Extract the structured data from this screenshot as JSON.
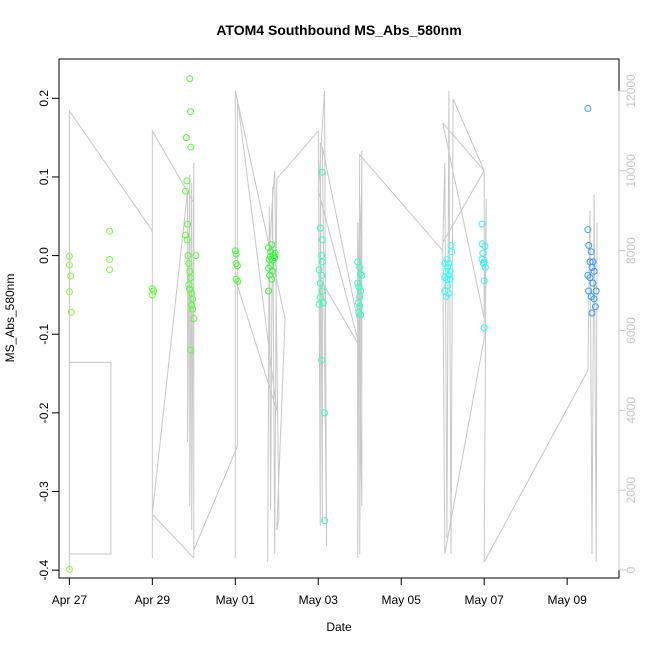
{
  "chart_data": {
    "type": "scatter",
    "title": "ATOM4 Southbound MS_Abs_580nm",
    "xlabel": "Date",
    "ylabel": "MS_Abs_580nm",
    "xlim": [
      -0.25,
      13.25
    ],
    "ylim": [
      -0.41,
      0.25
    ],
    "y2lim": [
      -200,
      12800
    ],
    "grid": false,
    "x_ticks": [
      {
        "value": 0,
        "label": "Apr 27"
      },
      {
        "value": 2,
        "label": "Apr 29"
      },
      {
        "value": 4,
        "label": "May 01"
      },
      {
        "value": 6,
        "label": "May 03"
      },
      {
        "value": 8,
        "label": "May 05"
      },
      {
        "value": 10,
        "label": "May 07"
      },
      {
        "value": 12,
        "label": "May 09"
      }
    ],
    "y_ticks": [
      {
        "value": -0.4,
        "label": "-0.4"
      },
      {
        "value": -0.3,
        "label": "-0.3"
      },
      {
        "value": -0.2,
        "label": "-0.2"
      },
      {
        "value": -0.1,
        "label": "-0.1"
      },
      {
        "value": 0.0,
        "label": "0.0"
      },
      {
        "value": 0.1,
        "label": "0.1"
      },
      {
        "value": 0.2,
        "label": "0.2"
      }
    ],
    "y2_ticks": [
      {
        "value": 0,
        "label": "0"
      },
      {
        "value": 2000,
        "label": "2000"
      },
      {
        "value": 4000,
        "label": "4000"
      },
      {
        "value": 6000,
        "label": "6000"
      },
      {
        "value": 8000,
        "label": "8000"
      },
      {
        "value": 10000,
        "label": "10000"
      },
      {
        "value": 12000,
        "label": "12000"
      }
    ],
    "series": [
      {
        "name": "MS_Abs_580nm points",
        "kind": "points",
        "points": [
          {
            "x": 0.0,
            "y": -0.001,
            "color": "#80ff33"
          },
          {
            "x": 0.0,
            "y": -0.012,
            "color": "#80ff33"
          },
          {
            "x": 0.03,
            "y": -0.026,
            "color": "#80ff33"
          },
          {
            "x": 0.0,
            "y": -0.046,
            "color": "#80ff33"
          },
          {
            "x": 0.05,
            "y": -0.072,
            "color": "#80ff33"
          },
          {
            "x": 0.0,
            "y": -0.399,
            "color": "#80ff33"
          },
          {
            "x": 0.97,
            "y": 0.031,
            "color": "#7aff33"
          },
          {
            "x": 0.97,
            "y": -0.005,
            "color": "#7aff33"
          },
          {
            "x": 0.97,
            "y": -0.018,
            "color": "#7aff33"
          },
          {
            "x": 2.0,
            "y": -0.042,
            "color": "#66ff33"
          },
          {
            "x": 2.03,
            "y": -0.045,
            "color": "#66ff33"
          },
          {
            "x": 2.0,
            "y": -0.05,
            "color": "#66ff33"
          },
          {
            "x": 2.82,
            "y": 0.15,
            "color": "#55ff33"
          },
          {
            "x": 2.83,
            "y": 0.095,
            "color": "#55ff33"
          },
          {
            "x": 2.8,
            "y": 0.082,
            "color": "#55ff33"
          },
          {
            "x": 2.85,
            "y": 0.04,
            "color": "#55ff33"
          },
          {
            "x": 2.8,
            "y": 0.026,
            "color": "#55ff33"
          },
          {
            "x": 2.84,
            "y": 0.02,
            "color": "#55ff33"
          },
          {
            "x": 2.86,
            "y": 0.0,
            "color": "#55ff33"
          },
          {
            "x": 2.88,
            "y": -0.01,
            "color": "#55ff33"
          },
          {
            "x": 2.9,
            "y": 0.225,
            "color": "#55ff33"
          },
          {
            "x": 2.92,
            "y": 0.183,
            "color": "#55ff33"
          },
          {
            "x": 2.93,
            "y": 0.138,
            "color": "#55ff33"
          },
          {
            "x": 2.9,
            "y": -0.02,
            "color": "#55ff33"
          },
          {
            "x": 2.92,
            "y": -0.028,
            "color": "#55ff33"
          },
          {
            "x": 2.88,
            "y": -0.037,
            "color": "#55ff33"
          },
          {
            "x": 2.9,
            "y": -0.043,
            "color": "#55ff33"
          },
          {
            "x": 2.95,
            "y": -0.048,
            "color": "#55ff33"
          },
          {
            "x": 2.97,
            "y": -0.055,
            "color": "#55ff33"
          },
          {
            "x": 2.95,
            "y": -0.063,
            "color": "#55ff33"
          },
          {
            "x": 2.97,
            "y": -0.068,
            "color": "#55ff33"
          },
          {
            "x": 3.0,
            "y": -0.08,
            "color": "#55ff33"
          },
          {
            "x": 2.92,
            "y": -0.12,
            "color": "#55ff33"
          },
          {
            "x": 3.05,
            "y": 0.0,
            "color": "#55ff33"
          },
          {
            "x": 4.0,
            "y": 0.006,
            "color": "#40ff33"
          },
          {
            "x": 4.02,
            "y": 0.002,
            "color": "#40ff33"
          },
          {
            "x": 4.02,
            "y": -0.01,
            "color": "#40ff33"
          },
          {
            "x": 4.05,
            "y": -0.013,
            "color": "#40ff33"
          },
          {
            "x": 4.02,
            "y": -0.03,
            "color": "#40ff33"
          },
          {
            "x": 4.06,
            "y": -0.033,
            "color": "#40ff33"
          },
          {
            "x": 4.8,
            "y": 0.01,
            "color": "#2eff33"
          },
          {
            "x": 4.85,
            "y": 0.005,
            "color": "#2eff33"
          },
          {
            "x": 4.88,
            "y": 0.014,
            "color": "#2eff33"
          },
          {
            "x": 4.85,
            "y": -0.001,
            "color": "#2eff33"
          },
          {
            "x": 4.82,
            "y": -0.005,
            "color": "#2eff33"
          },
          {
            "x": 4.9,
            "y": -0.006,
            "color": "#2eff33"
          },
          {
            "x": 4.85,
            "y": -0.013,
            "color": "#2eff33"
          },
          {
            "x": 4.8,
            "y": -0.016,
            "color": "#2eff33"
          },
          {
            "x": 4.9,
            "y": -0.02,
            "color": "#2eff33"
          },
          {
            "x": 4.83,
            "y": -0.025,
            "color": "#2eff33"
          },
          {
            "x": 4.88,
            "y": -0.03,
            "color": "#2eff33"
          },
          {
            "x": 4.8,
            "y": -0.045,
            "color": "#2eff33"
          },
          {
            "x": 4.93,
            "y": 0.0,
            "color": "#2eff33"
          },
          {
            "x": 4.95,
            "y": -0.003,
            "color": "#2eff33"
          },
          {
            "x": 4.96,
            "y": 0.003,
            "color": "#2eff33"
          },
          {
            "x": 6.1,
            "y": 0.106,
            "color": "#33ffb3"
          },
          {
            "x": 6.05,
            "y": 0.035,
            "color": "#33ffb3"
          },
          {
            "x": 6.1,
            "y": 0.02,
            "color": "#33ffb3"
          },
          {
            "x": 6.08,
            "y": 0.0,
            "color": "#33ffb3"
          },
          {
            "x": 6.1,
            "y": -0.008,
            "color": "#33ffb3"
          },
          {
            "x": 6.02,
            "y": -0.018,
            "color": "#33ffb3"
          },
          {
            "x": 6.08,
            "y": -0.025,
            "color": "#33ffb3"
          },
          {
            "x": 6.05,
            "y": -0.035,
            "color": "#33ffb3"
          },
          {
            "x": 6.1,
            "y": -0.045,
            "color": "#33ffb3"
          },
          {
            "x": 6.05,
            "y": -0.053,
            "color": "#33ffb3"
          },
          {
            "x": 6.02,
            "y": -0.062,
            "color": "#33ffb3"
          },
          {
            "x": 6.12,
            "y": -0.06,
            "color": "#33ffb3"
          },
          {
            "x": 6.08,
            "y": -0.133,
            "color": "#33ffb3"
          },
          {
            "x": 6.15,
            "y": -0.2,
            "color": "#33ffb3"
          },
          {
            "x": 6.15,
            "y": -0.337,
            "color": "#33ffb3"
          },
          {
            "x": 6.95,
            "y": -0.008,
            "color": "#33ffc0"
          },
          {
            "x": 7.0,
            "y": -0.015,
            "color": "#33ffc0"
          },
          {
            "x": 7.02,
            "y": -0.023,
            "color": "#33ffc0"
          },
          {
            "x": 6.95,
            "y": -0.035,
            "color": "#33ffc0"
          },
          {
            "x": 6.98,
            "y": -0.04,
            "color": "#33ffc0"
          },
          {
            "x": 7.02,
            "y": -0.045,
            "color": "#33ffc0"
          },
          {
            "x": 7.0,
            "y": -0.052,
            "color": "#33ffc0"
          },
          {
            "x": 6.97,
            "y": -0.06,
            "color": "#33ffc0"
          },
          {
            "x": 7.0,
            "y": -0.065,
            "color": "#33ffc0"
          },
          {
            "x": 6.98,
            "y": -0.072,
            "color": "#33ffc0"
          },
          {
            "x": 7.02,
            "y": -0.075,
            "color": "#33ffc0"
          },
          {
            "x": 7.05,
            "y": -0.025,
            "color": "#33ffc0"
          },
          {
            "x": 9.05,
            "y": -0.01,
            "color": "#33ffff"
          },
          {
            "x": 9.1,
            "y": -0.005,
            "color": "#33ffff"
          },
          {
            "x": 9.12,
            "y": -0.015,
            "color": "#33ffff"
          },
          {
            "x": 9.08,
            "y": -0.02,
            "color": "#33ffff"
          },
          {
            "x": 9.15,
            "y": -0.025,
            "color": "#33ffff"
          },
          {
            "x": 9.05,
            "y": -0.028,
            "color": "#33ffff"
          },
          {
            "x": 9.1,
            "y": -0.03,
            "color": "#33ffff"
          },
          {
            "x": 9.18,
            "y": -0.03,
            "color": "#33ffff"
          },
          {
            "x": 9.2,
            "y": 0.013,
            "color": "#33ffff"
          },
          {
            "x": 9.22,
            "y": 0.005,
            "color": "#33ffff"
          },
          {
            "x": 9.15,
            "y": -0.01,
            "color": "#33ffff"
          },
          {
            "x": 9.12,
            "y": -0.038,
            "color": "#33ffff"
          },
          {
            "x": 9.05,
            "y": -0.045,
            "color": "#33ffff"
          },
          {
            "x": 9.08,
            "y": -0.052,
            "color": "#33ffff"
          },
          {
            "x": 9.15,
            "y": -0.048,
            "color": "#33ffff"
          },
          {
            "x": 9.18,
            "y": -0.02,
            "color": "#33ffff"
          },
          {
            "x": 9.95,
            "y": 0.04,
            "color": "#33f2ff"
          },
          {
            "x": 9.95,
            "y": 0.015,
            "color": "#33f2ff"
          },
          {
            "x": 10.02,
            "y": 0.012,
            "color": "#33f2ff"
          },
          {
            "x": 9.97,
            "y": 0.003,
            "color": "#33f2ff"
          },
          {
            "x": 9.95,
            "y": -0.005,
            "color": "#33f2ff"
          },
          {
            "x": 9.98,
            "y": -0.01,
            "color": "#33f2ff"
          },
          {
            "x": 10.0,
            "y": -0.008,
            "color": "#33f2ff"
          },
          {
            "x": 10.03,
            "y": -0.015,
            "color": "#33f2ff"
          },
          {
            "x": 10.0,
            "y": -0.032,
            "color": "#33f2ff"
          },
          {
            "x": 10.0,
            "y": -0.092,
            "color": "#33f2ff"
          },
          {
            "x": 12.5,
            "y": 0.187,
            "color": "#33aaff"
          },
          {
            "x": 12.5,
            "y": 0.033,
            "color": "#33aaff"
          },
          {
            "x": 12.52,
            "y": 0.013,
            "color": "#3399ff"
          },
          {
            "x": 12.58,
            "y": 0.005,
            "color": "#3399ff"
          },
          {
            "x": 12.55,
            "y": -0.008,
            "color": "#3399ff"
          },
          {
            "x": 12.62,
            "y": -0.008,
            "color": "#3399ff"
          },
          {
            "x": 12.6,
            "y": -0.015,
            "color": "#3399ff"
          },
          {
            "x": 12.65,
            "y": -0.02,
            "color": "#3399ff"
          },
          {
            "x": 12.5,
            "y": -0.025,
            "color": "#3399ff"
          },
          {
            "x": 12.55,
            "y": -0.028,
            "color": "#3399ff"
          },
          {
            "x": 12.62,
            "y": -0.035,
            "color": "#3399ff"
          },
          {
            "x": 12.52,
            "y": -0.045,
            "color": "#3399ff"
          },
          {
            "x": 12.58,
            "y": -0.052,
            "color": "#3399ff"
          },
          {
            "x": 12.65,
            "y": -0.055,
            "color": "#3399ff"
          },
          {
            "x": 12.68,
            "y": -0.065,
            "color": "#3399ff"
          },
          {
            "x": 12.6,
            "y": -0.073,
            "color": "#3399ff"
          },
          {
            "x": 12.7,
            "y": -0.045,
            "color": "#3399ff"
          }
        ]
      },
      {
        "name": "secondary trace",
        "kind": "line",
        "axis": "right",
        "color": "#c8c8c8",
        "points": [
          [
            0.0,
            0
          ],
          [
            0.0,
            5200
          ],
          [
            1.0,
            5200
          ],
          [
            1.0,
            400
          ],
          [
            0.0,
            400
          ],
          [
            0.0,
            11500
          ],
          [
            2.0,
            8500
          ],
          [
            2.0,
            300
          ],
          [
            2.0,
            11000
          ],
          [
            3.0,
            9200
          ],
          [
            3.0,
            300
          ],
          [
            2.0,
            1400
          ],
          [
            2.85,
            9500
          ],
          [
            2.85,
            3200
          ],
          [
            2.9,
            9900
          ],
          [
            2.9,
            1600
          ],
          [
            2.95,
            9700
          ],
          [
            2.95,
            1000
          ],
          [
            3.0,
            10200
          ],
          [
            3.0,
            500
          ],
          [
            4.05,
            3100
          ],
          [
            4.05,
            11800
          ],
          [
            5.0,
            4000
          ],
          [
            4.0,
            7300
          ],
          [
            4.0,
            300
          ],
          [
            4.0,
            12000
          ],
          [
            5.2,
            6300
          ],
          [
            5.0,
            1000
          ],
          [
            5.05,
            1300
          ],
          [
            4.95,
            10000
          ],
          [
            4.9,
            9300
          ],
          [
            4.82,
            8000
          ],
          [
            4.78,
            200
          ],
          [
            4.82,
            9100
          ],
          [
            4.85,
            1500
          ],
          [
            4.9,
            9600
          ],
          [
            4.95,
            400
          ],
          [
            5.0,
            9800
          ],
          [
            6.0,
            11000
          ],
          [
            6.05,
            1100
          ],
          [
            6.05,
            10700
          ],
          [
            6.1,
            1200
          ],
          [
            6.1,
            7200
          ],
          [
            7.0,
            5600
          ],
          [
            6.0,
            9500
          ],
          [
            6.15,
            12000
          ],
          [
            6.2,
            600
          ],
          [
            6.1,
            10600
          ],
          [
            7.0,
            6000
          ],
          [
            7.05,
            9700
          ],
          [
            7.0,
            8300
          ],
          [
            7.0,
            400
          ],
          [
            7.05,
            10500
          ],
          [
            7.05,
            1600
          ],
          [
            6.95,
            8700
          ],
          [
            6.95,
            300
          ],
          [
            7.0,
            10400
          ],
          [
            9.0,
            8000
          ],
          [
            9.05,
            10200
          ],
          [
            9.1,
            800
          ],
          [
            9.15,
            12000
          ],
          [
            9.2,
            400
          ],
          [
            9.25,
            11800
          ],
          [
            10.0,
            10000
          ],
          [
            9.0,
            8200
          ],
          [
            9.05,
            400
          ],
          [
            10.0,
            5800
          ],
          [
            10.0,
            10000
          ],
          [
            9.0,
            11200
          ],
          [
            10.0,
            6300
          ],
          [
            10.05,
            9300
          ],
          [
            10.0,
            200
          ],
          [
            12.5,
            5000
          ],
          [
            12.55,
            9000
          ],
          [
            12.6,
            400
          ],
          [
            12.65,
            9400
          ],
          [
            12.7,
            200
          ],
          [
            12.72,
            8700
          ]
        ]
      }
    ]
  }
}
